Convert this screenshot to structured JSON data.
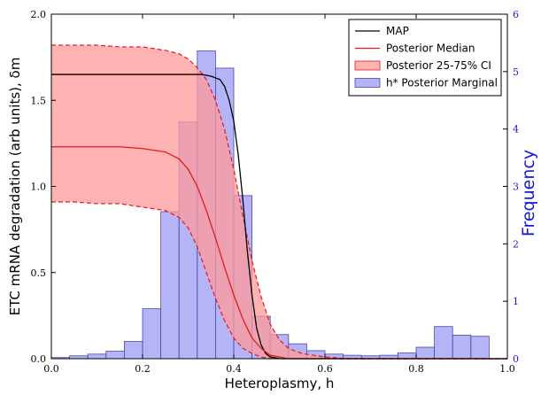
{
  "chart_data": {
    "type": "line",
    "xlabel": "Heteroplasmy, h",
    "ylabel": "ETC mRNA degradation (arb units), δm",
    "y2label": "Frequency",
    "xlim": [
      0.0,
      1.0
    ],
    "ylim": [
      0.0,
      2.0
    ],
    "y2lim": [
      0,
      6
    ],
    "x_ticks": [
      "0.0",
      "0.2",
      "0.4",
      "0.6",
      "0.8",
      "1.0"
    ],
    "y_ticks": [
      "0.0",
      "0.5",
      "1.0",
      "1.5",
      "2.0"
    ],
    "y2_ticks": [
      "0",
      "1",
      "2",
      "3",
      "4",
      "5",
      "6"
    ],
    "grid": false,
    "legend_placement": "top-right",
    "legend": [
      {
        "label": "MAP",
        "kind": "line",
        "color": "#000000"
      },
      {
        "label": "Posterior Median",
        "kind": "line",
        "color": "#e31a1c"
      },
      {
        "label": "Posterior 25-75% CI",
        "kind": "patch",
        "color": "#ff9999"
      },
      {
        "label": "h* Posterior Marginal",
        "kind": "patch",
        "color": "#8c8cf2"
      }
    ],
    "series": [
      {
        "name": "MAP",
        "x": [
          0.0,
          0.05,
          0.1,
          0.15,
          0.2,
          0.25,
          0.3,
          0.33,
          0.35,
          0.37,
          0.38,
          0.39,
          0.4,
          0.41,
          0.42,
          0.43,
          0.44,
          0.45,
          0.46,
          0.47,
          0.48,
          0.5,
          0.55,
          0.6,
          0.7,
          0.8,
          0.9,
          1.0
        ],
        "y": [
          1.65,
          1.65,
          1.65,
          1.65,
          1.65,
          1.65,
          1.65,
          1.65,
          1.64,
          1.62,
          1.58,
          1.5,
          1.38,
          1.18,
          0.92,
          0.62,
          0.37,
          0.18,
          0.08,
          0.03,
          0.01,
          0.0,
          0.0,
          0.0,
          0.0,
          0.0,
          0.0,
          0.0
        ]
      },
      {
        "name": "Posterior Median",
        "x": [
          0.0,
          0.05,
          0.1,
          0.15,
          0.2,
          0.25,
          0.28,
          0.3,
          0.32,
          0.34,
          0.36,
          0.38,
          0.4,
          0.42,
          0.44,
          0.46,
          0.48,
          0.5,
          0.52,
          0.55,
          0.6,
          0.7,
          0.8,
          0.9,
          1.0
        ],
        "y": [
          1.23,
          1.23,
          1.23,
          1.23,
          1.22,
          1.2,
          1.16,
          1.1,
          1.0,
          0.86,
          0.7,
          0.53,
          0.37,
          0.23,
          0.12,
          0.06,
          0.02,
          0.01,
          0.0,
          0.0,
          0.0,
          0.0,
          0.0,
          0.0,
          0.0
        ]
      }
    ],
    "ci_band": {
      "name": "Posterior 25-75% CI",
      "x": [
        0.0,
        0.05,
        0.1,
        0.15,
        0.2,
        0.25,
        0.28,
        0.3,
        0.32,
        0.34,
        0.36,
        0.38,
        0.4,
        0.42,
        0.44,
        0.46,
        0.48,
        0.5,
        0.52,
        0.55,
        0.6,
        0.65,
        0.7,
        0.8,
        0.9,
        1.0
      ],
      "upper": [
        1.82,
        1.82,
        1.82,
        1.81,
        1.81,
        1.79,
        1.77,
        1.74,
        1.69,
        1.62,
        1.5,
        1.33,
        1.1,
        0.83,
        0.57,
        0.36,
        0.2,
        0.11,
        0.06,
        0.03,
        0.01,
        0.0,
        0.0,
        0.0,
        0.0,
        0.0
      ],
      "lower": [
        0.91,
        0.91,
        0.9,
        0.9,
        0.88,
        0.86,
        0.82,
        0.76,
        0.65,
        0.5,
        0.35,
        0.22,
        0.12,
        0.06,
        0.03,
        0.01,
        0.0,
        0.0,
        0.0,
        0.0,
        0.0,
        0.0,
        0.0,
        0.0,
        0.0,
        0.0
      ]
    },
    "histogram": {
      "name": "h* Posterior Marginal",
      "axis": "right",
      "bin_edges": [
        0.0,
        0.04,
        0.08,
        0.12,
        0.16,
        0.2,
        0.24,
        0.28,
        0.32,
        0.36,
        0.4,
        0.44,
        0.48,
        0.52,
        0.56,
        0.6,
        0.64,
        0.68,
        0.72,
        0.76,
        0.8,
        0.84,
        0.88,
        0.92,
        0.96,
        1.0
      ],
      "counts": [
        0.02,
        0.05,
        0.08,
        0.13,
        0.3,
        0.87,
        2.56,
        4.12,
        5.36,
        5.06,
        2.84,
        0.74,
        0.42,
        0.26,
        0.14,
        0.08,
        0.06,
        0.05,
        0.06,
        0.1,
        0.2,
        0.56,
        0.41,
        0.39,
        0.0
      ]
    },
    "colors": {
      "map": "#000000",
      "median": "#e31a1c",
      "ci_fill": "#ff9999",
      "ci_edge": "#e31a1c",
      "hist_fill": "#8c8cf2",
      "hist_edge": "#4a4aa8",
      "right_axis": "#1a1ad6"
    }
  }
}
